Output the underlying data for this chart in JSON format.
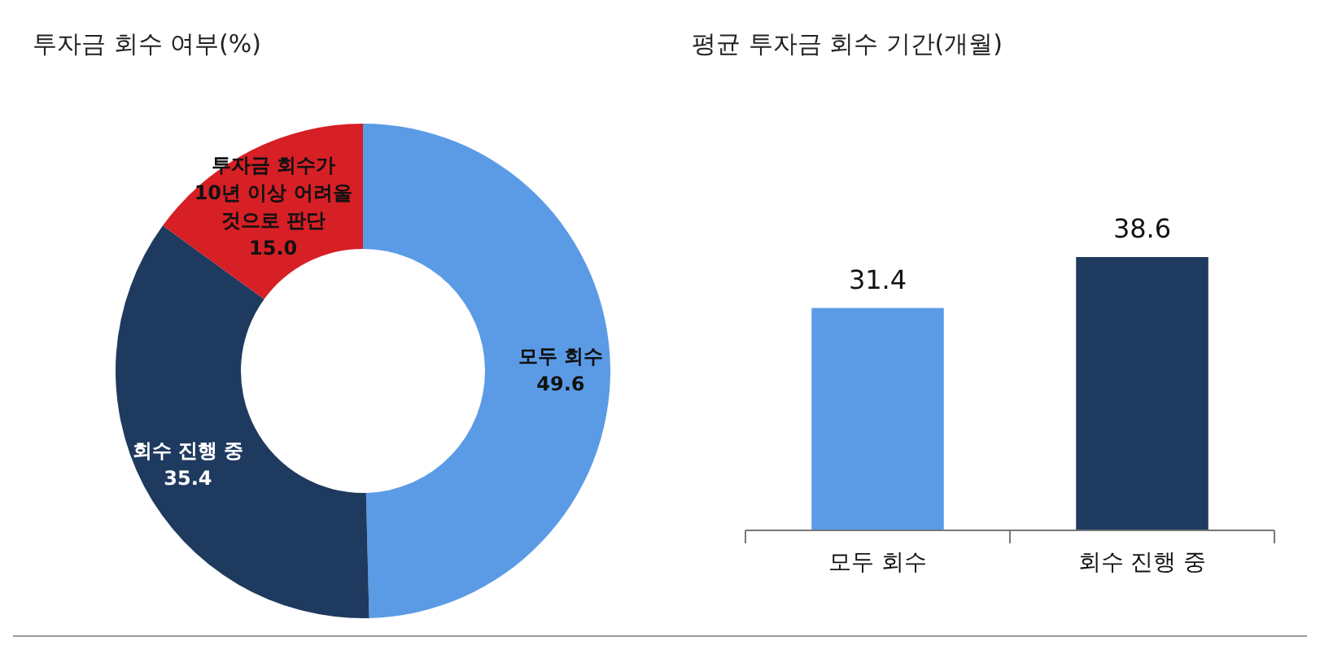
{
  "chart_data": [
    {
      "type": "donut",
      "title": "투자금 회수 여부(%)",
      "categories": [
        "모두 회수",
        "회수 진행 중",
        "투자금 회수가 10년 이상 어려울 것으로 판단"
      ],
      "values": [
        49.6,
        35.4,
        15
      ],
      "value_labels": [
        "49.6",
        "35.4",
        "15.0"
      ],
      "colors": [
        "#5b9be6",
        "#1f3a5f",
        "#d71f26"
      ]
    },
    {
      "type": "bar",
      "title": "평균 투자금 회수 기간(개월)",
      "categories": [
        "모두 회수",
        "회수 진행 중"
      ],
      "values": [
        31.4,
        38.6
      ],
      "colors": [
        "#5b9be6",
        "#1f3a5f"
      ],
      "data_labels": true
    }
  ]
}
